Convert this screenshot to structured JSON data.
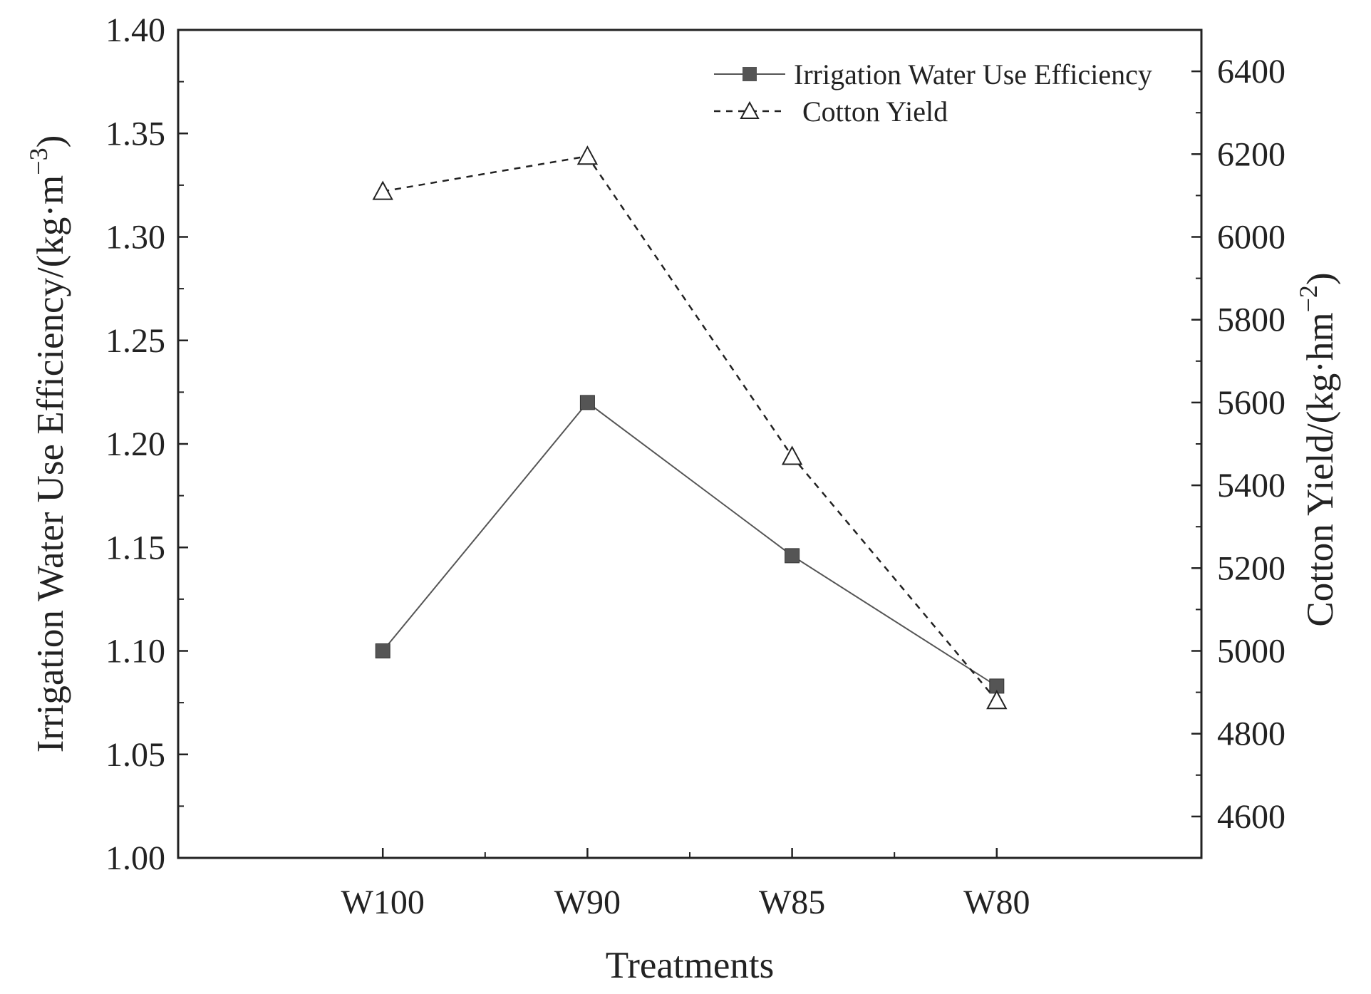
{
  "chart_data": {
    "type": "line",
    "xlabel": "Treatments",
    "categories": [
      "W100",
      "W90",
      "W85",
      "W80"
    ],
    "y_left": {
      "label": "Irrigation Water Use Efficiency/(kg·m",
      "label_sup": "−3",
      "label_close": ")",
      "ylim": [
        1.0,
        1.4
      ],
      "ticks": [
        "1.00",
        "1.05",
        "1.10",
        "1.15",
        "1.20",
        "1.25",
        "1.30",
        "1.35",
        "1.40"
      ]
    },
    "y_right": {
      "label": "Cotton Yield/(kg·hm",
      "label_sup": "−2",
      "label_close": ")",
      "ylim": [
        4500,
        6500
      ],
      "ticks": [
        "4600",
        "4800",
        "5000",
        "5200",
        "5400",
        "5600",
        "5800",
        "6000",
        "6200",
        "6400"
      ]
    },
    "series": [
      {
        "name": "Irrigation Water Use Efficiency",
        "axis": "left",
        "values": [
          1.1,
          1.22,
          1.146,
          1.083
        ],
        "marker": "filled-square",
        "line": "solid",
        "color": "#555555"
      },
      {
        "name": "Cotton Yield",
        "axis": "right",
        "values": [
          6110,
          6195,
          5470,
          4880
        ],
        "marker": "open-triangle",
        "line": "dashed",
        "color": "#222222"
      }
    ],
    "legend_position": "top-right",
    "grid": false
  }
}
